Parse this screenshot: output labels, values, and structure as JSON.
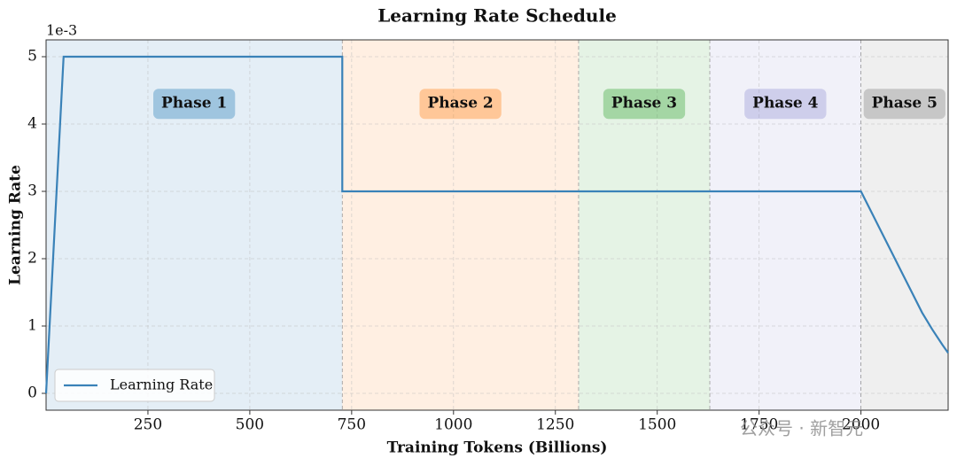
{
  "chart_data": {
    "type": "line",
    "title": "Learning Rate Schedule",
    "xlabel": "Training Tokens (Billions)",
    "ylabel": "Learning Rate",
    "y_offset_label": "1e-3",
    "xlim": [
      0,
      2214
    ],
    "ylim": [
      -0.25,
      5.25
    ],
    "xticks": [
      250,
      500,
      750,
      1000,
      1250,
      1500,
      1750,
      2000
    ],
    "yticks": [
      0,
      1,
      2,
      3,
      4,
      5
    ],
    "grid": true,
    "legend": "lower left",
    "series": [
      {
        "name": "Learning Rate",
        "color": "#3a82b8",
        "x": [
          0,
          43,
          727,
          727,
          2000,
          2025,
          2050,
          2075,
          2100,
          2125,
          2150,
          2175,
          2200,
          2214
        ],
        "values": [
          0,
          5,
          5,
          3,
          3,
          2.7,
          2.4,
          2.1,
          1.8,
          1.5,
          1.2,
          0.95,
          0.72,
          0.6
        ]
      }
    ],
    "phases": [
      {
        "label": "Phase 1",
        "start": 0,
        "end": 727,
        "label_y": 4.3,
        "color": "#1f77b4"
      },
      {
        "label": "Phase 2",
        "start": 727,
        "end": 1307,
        "label_y": 4.3,
        "color": "#ff7f0e"
      },
      {
        "label": "Phase 3",
        "start": 1307,
        "end": 1629,
        "label_y": 4.3,
        "color": "#2ca02c"
      },
      {
        "label": "Phase 4",
        "start": 1629,
        "end": 2000,
        "label_y": 4.3,
        "color": "#8c8cd0"
      },
      {
        "label": "Phase 5",
        "start": 2000,
        "end": 2214,
        "label_y": 4.3,
        "color": "#7f7f7f"
      }
    ],
    "watermark": "公众号 · 新智元"
  }
}
